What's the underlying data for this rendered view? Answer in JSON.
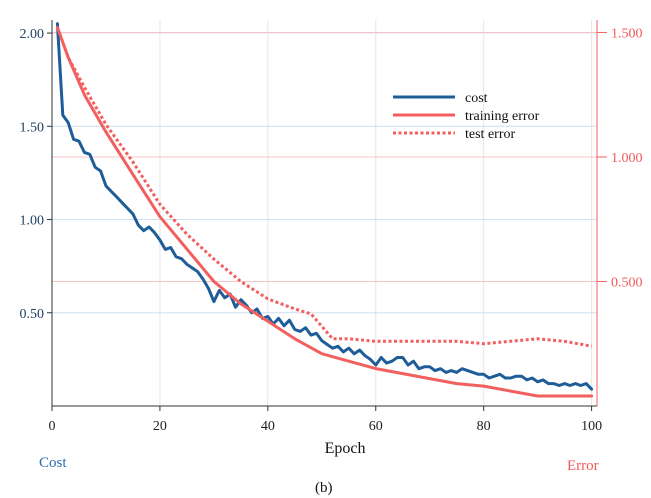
{
  "colors": {
    "cost": "#1f5d99",
    "training_error": "#f25f5f",
    "test_error": "#f25f5f",
    "grid_blue": "#cfe0ef",
    "grid_red": "#f7c3c3",
    "grid_vertical": "#e6e6e6",
    "axis": "#333333",
    "right_axis": "#f25f5f"
  },
  "labels": {
    "xlabel": "Epoch",
    "left_axis_name": "Cost",
    "right_axis_name": "Error",
    "caption": "(b)"
  },
  "chart_data": {
    "type": "line",
    "title": "",
    "xlabel": "Epoch",
    "ylabel_left": "Cost",
    "ylabel_right": "Error",
    "xlim": [
      0,
      101
    ],
    "ylim_left": [
      0.0,
      2.07
    ],
    "ylim_right": [
      0.0,
      1.55
    ],
    "x_ticks": [
      0,
      20,
      40,
      60,
      80,
      100
    ],
    "y_left_ticks": [
      "2.00",
      "1.50",
      "1.00",
      "0.50"
    ],
    "y_left_tick_values": [
      2.0,
      1.5,
      1.0,
      0.5
    ],
    "y_right_ticks": [
      "1.500",
      "1.000",
      "0.500"
    ],
    "y_right_tick_values": [
      1.5,
      1.0,
      0.5
    ],
    "grid": true,
    "legend_position": "top-right",
    "series": [
      {
        "name": "cost",
        "axis": "left",
        "style": "solid",
        "x": [
          1,
          2,
          3,
          4,
          5,
          6,
          7,
          8,
          9,
          10,
          11,
          12,
          13,
          14,
          15,
          16,
          17,
          18,
          19,
          20,
          21,
          22,
          23,
          24,
          25,
          26,
          27,
          28,
          29,
          30,
          31,
          32,
          33,
          34,
          35,
          36,
          37,
          38,
          39,
          40,
          41,
          42,
          43,
          44,
          45,
          46,
          47,
          48,
          49,
          50,
          51,
          52,
          53,
          54,
          55,
          56,
          57,
          58,
          59,
          60,
          61,
          62,
          63,
          64,
          65,
          66,
          67,
          68,
          69,
          70,
          71,
          72,
          73,
          74,
          75,
          76,
          77,
          78,
          79,
          80,
          81,
          82,
          83,
          84,
          85,
          86,
          87,
          88,
          89,
          90,
          91,
          92,
          93,
          94,
          95,
          96,
          97,
          98,
          99,
          100
        ],
        "values": [
          2.05,
          1.56,
          1.52,
          1.43,
          1.42,
          1.36,
          1.35,
          1.28,
          1.26,
          1.18,
          1.15,
          1.12,
          1.09,
          1.06,
          1.03,
          0.97,
          0.94,
          0.96,
          0.93,
          0.89,
          0.84,
          0.85,
          0.8,
          0.79,
          0.76,
          0.74,
          0.72,
          0.68,
          0.63,
          0.56,
          0.62,
          0.58,
          0.6,
          0.53,
          0.57,
          0.54,
          0.5,
          0.52,
          0.47,
          0.48,
          0.44,
          0.47,
          0.43,
          0.46,
          0.41,
          0.4,
          0.42,
          0.38,
          0.39,
          0.35,
          0.33,
          0.31,
          0.32,
          0.29,
          0.31,
          0.28,
          0.3,
          0.27,
          0.25,
          0.22,
          0.26,
          0.23,
          0.24,
          0.26,
          0.26,
          0.22,
          0.24,
          0.2,
          0.21,
          0.21,
          0.19,
          0.2,
          0.18,
          0.19,
          0.18,
          0.2,
          0.19,
          0.18,
          0.17,
          0.17,
          0.15,
          0.16,
          0.17,
          0.15,
          0.15,
          0.16,
          0.16,
          0.14,
          0.15,
          0.13,
          0.14,
          0.12,
          0.12,
          0.11,
          0.12,
          0.11,
          0.12,
          0.11,
          0.12,
          0.09
        ]
      },
      {
        "name": "training error",
        "axis": "right",
        "style": "solid",
        "x": [
          1,
          3,
          6,
          10,
          15,
          20,
          25,
          30,
          35,
          40,
          45,
          50,
          55,
          60,
          65,
          70,
          75,
          80,
          85,
          90,
          95,
          100
        ],
        "values": [
          1.52,
          1.4,
          1.25,
          1.1,
          0.93,
          0.76,
          0.63,
          0.5,
          0.41,
          0.34,
          0.27,
          0.21,
          0.18,
          0.15,
          0.13,
          0.11,
          0.09,
          0.08,
          0.06,
          0.04,
          0.04,
          0.04
        ]
      },
      {
        "name": "test error",
        "axis": "right",
        "style": "dotted",
        "x": [
          1,
          3,
          6,
          10,
          15,
          20,
          25,
          30,
          35,
          40,
          45,
          48,
          50,
          52,
          55,
          60,
          65,
          70,
          75,
          80,
          85,
          90,
          95,
          100
        ],
        "values": [
          1.52,
          1.4,
          1.28,
          1.13,
          0.98,
          0.81,
          0.69,
          0.59,
          0.5,
          0.43,
          0.39,
          0.37,
          0.32,
          0.27,
          0.27,
          0.26,
          0.26,
          0.26,
          0.26,
          0.25,
          0.26,
          0.27,
          0.26,
          0.24
        ]
      }
    ]
  }
}
